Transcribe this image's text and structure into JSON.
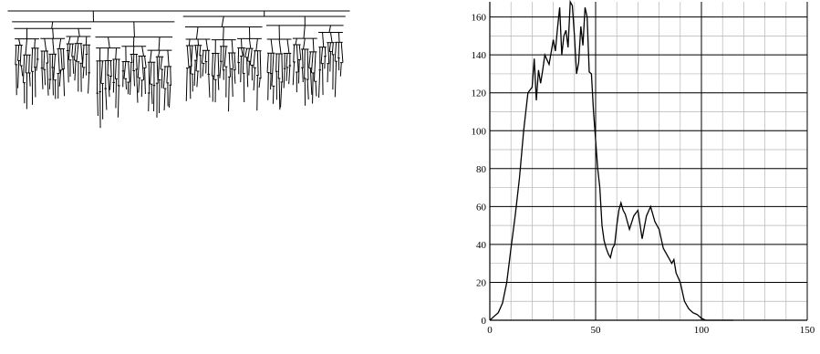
{
  "chart_data": [
    {
      "type": "diagram",
      "description_visible_only": "",
      "stroke_color": "#000000"
    },
    {
      "type": "line",
      "xlim": [
        0,
        150
      ],
      "ylim": [
        0,
        168
      ],
      "x_ticks": [
        0,
        50,
        100,
        150
      ],
      "y_ticks": [
        0,
        20,
        40,
        60,
        80,
        100,
        120,
        140,
        160
      ],
      "grid": true,
      "x_minor_step": 10,
      "y_minor_step": 10,
      "line_color": "#000000",
      "grid_color": "#b4b4b4",
      "major_grid_color": "#000000",
      "series": [
        {
          "x": [
            0,
            2,
            4,
            6,
            8,
            10,
            12,
            14,
            16,
            18,
            20,
            21,
            22,
            23,
            24,
            25,
            26,
            28,
            30,
            31,
            32,
            33,
            34,
            35,
            36,
            37,
            38,
            39,
            40,
            41,
            42,
            43,
            44,
            45,
            46,
            47,
            48,
            49,
            50,
            51,
            52,
            53,
            54,
            55,
            56,
            57,
            58,
            59,
            60,
            61,
            62,
            63,
            64,
            65,
            66,
            68,
            70,
            72,
            74,
            76,
            78,
            80,
            82,
            84,
            86,
            87,
            88,
            90,
            91,
            92,
            93,
            94,
            96,
            98,
            99,
            100,
            102,
            104,
            106,
            108,
            110,
            111,
            112,
            113,
            114,
            115
          ],
          "y": [
            0,
            2,
            4,
            9,
            20,
            38,
            55,
            75,
            100,
            120,
            123,
            138,
            116,
            132,
            125,
            132,
            140,
            135,
            148,
            142,
            154,
            165,
            140,
            150,
            153,
            144,
            168,
            166,
            150,
            130,
            136,
            155,
            145,
            165,
            160,
            131,
            130,
            110,
            95,
            80,
            70,
            50,
            42,
            38,
            35,
            33,
            38,
            40,
            50,
            58,
            62,
            58,
            56,
            52,
            48,
            55,
            58,
            43,
            55,
            60,
            52,
            48,
            38,
            34,
            30,
            32,
            25,
            20,
            15,
            10,
            8,
            6,
            4,
            3,
            2,
            1,
            0,
            0,
            0,
            0,
            0,
            0,
            0,
            0,
            0,
            0
          ]
        }
      ]
    }
  ]
}
